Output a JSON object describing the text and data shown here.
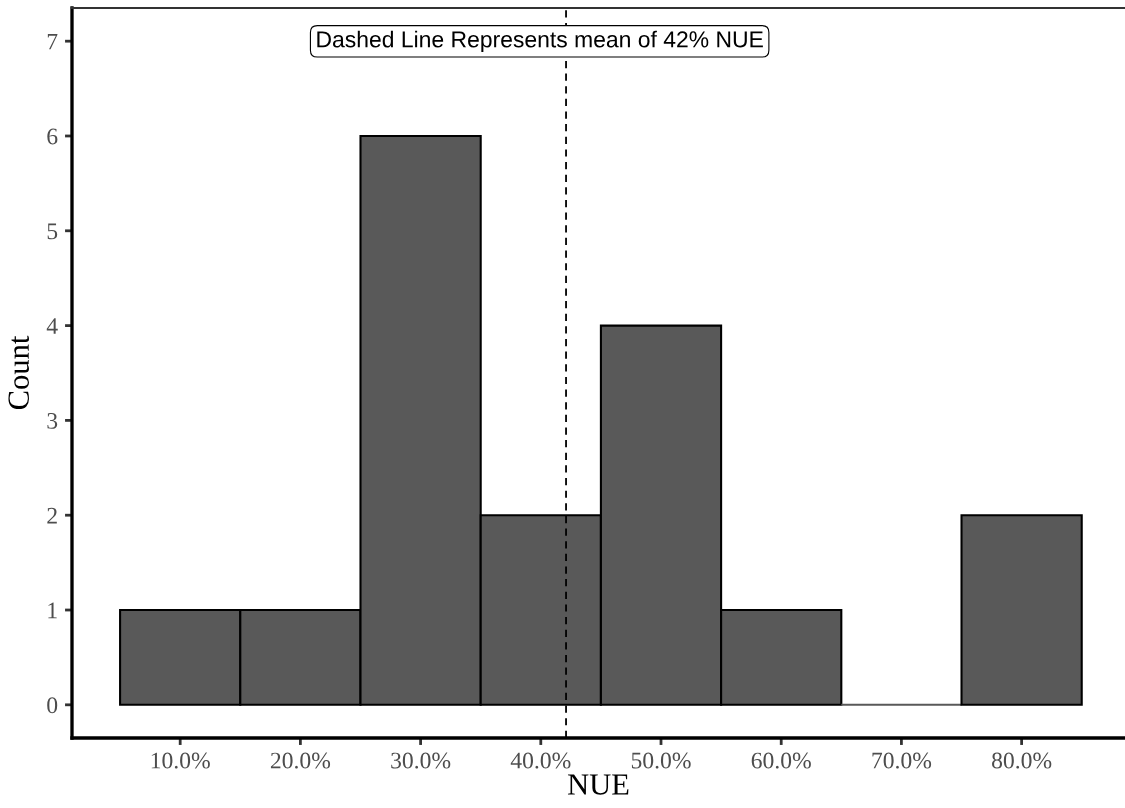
{
  "chart_data": {
    "type": "histogram",
    "xlabel": "NUE",
    "ylabel": "Count",
    "bins": [
      5,
      15,
      25,
      35,
      45,
      55,
      65,
      75,
      85
    ],
    "values": [
      1,
      1,
      6,
      2,
      4,
      1,
      0,
      2
    ],
    "color": "#595959",
    "xlim": [
      1,
      88.6
    ],
    "xticks": [
      {
        "value": 10,
        "label": "10.0%"
      },
      {
        "value": 20,
        "label": "20.0%"
      },
      {
        "value": 30,
        "label": "30.0%"
      },
      {
        "value": 40,
        "label": "40.0%"
      },
      {
        "value": 50,
        "label": "50.0%"
      },
      {
        "value": 60,
        "label": "60.0%"
      },
      {
        "value": 70,
        "label": "70.0%"
      },
      {
        "value": 80,
        "label": "80.0%"
      }
    ],
    "ylim": [
      -0.35,
      7.35
    ],
    "yticks": [
      0,
      1,
      2,
      3,
      4,
      5,
      6,
      7
    ],
    "grid": false,
    "ref_lines": [
      {
        "axis": "x",
        "value": 42.1,
        "label": "Dashed Line Represents mean of 42% NUE",
        "color": "#000000",
        "line_style": "dashed"
      }
    ]
  }
}
